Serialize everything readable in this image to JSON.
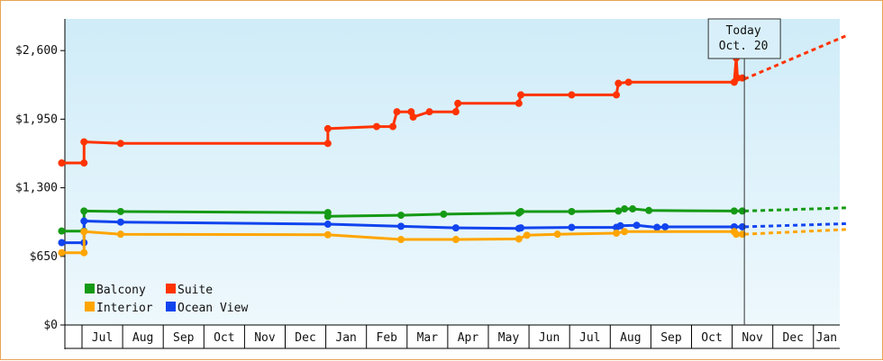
{
  "chart_data": {
    "type": "line",
    "y_ticks": [
      "$0",
      "$650",
      "$1,300",
      "$1,950",
      "$2,600"
    ],
    "ylim": [
      0,
      2900
    ],
    "x_ticks": [
      "Jul",
      "Aug",
      "Sep",
      "Oct",
      "Nov",
      "Dec",
      "Jan",
      "Feb",
      "Mar",
      "Apr",
      "May",
      "Jun",
      "Jul",
      "Aug",
      "Sep",
      "Oct",
      "Nov",
      "Dec",
      "Jan"
    ],
    "today": {
      "line1": "Today",
      "line2": "Oct. 20",
      "x": 16.3
    },
    "legend": [
      "Balcony",
      "Suite",
      "Interior",
      "Ocean View"
    ],
    "series": [
      {
        "name": "Suite",
        "color": "#ff3300",
        "points": [
          [
            -0.5,
            1535
          ],
          [
            0.05,
            1535
          ],
          [
            0.05,
            1735
          ],
          [
            0.95,
            1720
          ],
          [
            6.05,
            1720
          ],
          [
            6.05,
            1860
          ],
          [
            7.25,
            1880
          ],
          [
            7.65,
            1880
          ],
          [
            7.75,
            2020
          ],
          [
            8.1,
            2020
          ],
          [
            8.15,
            1970
          ],
          [
            8.55,
            2020
          ],
          [
            9.2,
            2020
          ],
          [
            9.25,
            2100
          ],
          [
            10.75,
            2100
          ],
          [
            10.8,
            2180
          ],
          [
            12.05,
            2180
          ],
          [
            13.15,
            2180
          ],
          [
            13.2,
            2290
          ],
          [
            13.45,
            2300
          ],
          [
            16.05,
            2300
          ],
          [
            16.1,
            2530
          ],
          [
            16.13,
            2340
          ],
          [
            16.25,
            2340
          ]
        ],
        "forecast": [
          [
            16.3,
            2330
          ],
          [
            18.8,
            2740
          ]
        ]
      },
      {
        "name": "Balcony",
        "color": "#159a15",
        "points": [
          [
            -0.5,
            890
          ],
          [
            0.05,
            890
          ],
          [
            0.05,
            1080
          ],
          [
            0.95,
            1075
          ],
          [
            6.05,
            1065
          ],
          [
            6.05,
            1030
          ],
          [
            7.85,
            1040
          ],
          [
            8.9,
            1050
          ],
          [
            10.75,
            1060
          ],
          [
            10.8,
            1075
          ],
          [
            12.05,
            1075
          ],
          [
            13.2,
            1080
          ],
          [
            13.35,
            1100
          ],
          [
            13.55,
            1100
          ],
          [
            13.95,
            1085
          ],
          [
            16.05,
            1080
          ],
          [
            16.25,
            1080
          ]
        ],
        "forecast": [
          [
            16.3,
            1080
          ],
          [
            18.8,
            1110
          ]
        ]
      },
      {
        "name": "Ocean View",
        "color": "#1144ee",
        "points": [
          [
            -0.5,
            780
          ],
          [
            0.05,
            780
          ],
          [
            0.05,
            985
          ],
          [
            0.95,
            975
          ],
          [
            6.05,
            955
          ],
          [
            7.85,
            935
          ],
          [
            9.2,
            920
          ],
          [
            10.75,
            915
          ],
          [
            10.8,
            920
          ],
          [
            12.05,
            925
          ],
          [
            13.15,
            925
          ],
          [
            13.25,
            940
          ],
          [
            13.65,
            945
          ],
          [
            14.15,
            925
          ],
          [
            14.35,
            930
          ],
          [
            16.05,
            930
          ],
          [
            16.25,
            930
          ]
        ],
        "forecast": [
          [
            16.3,
            930
          ],
          [
            18.8,
            960
          ]
        ]
      },
      {
        "name": "Interior",
        "color": "#ffa500",
        "points": [
          [
            -0.5,
            685
          ],
          [
            0.05,
            685
          ],
          [
            0.05,
            885
          ],
          [
            0.95,
            860
          ],
          [
            6.05,
            855
          ],
          [
            7.85,
            810
          ],
          [
            9.2,
            810
          ],
          [
            10.75,
            815
          ],
          [
            10.95,
            850
          ],
          [
            11.7,
            860
          ],
          [
            13.15,
            870
          ],
          [
            13.35,
            885
          ],
          [
            16.05,
            885
          ],
          [
            16.1,
            860
          ],
          [
            16.25,
            860
          ]
        ],
        "forecast": [
          [
            16.3,
            860
          ],
          [
            18.8,
            905
          ]
        ]
      }
    ]
  }
}
